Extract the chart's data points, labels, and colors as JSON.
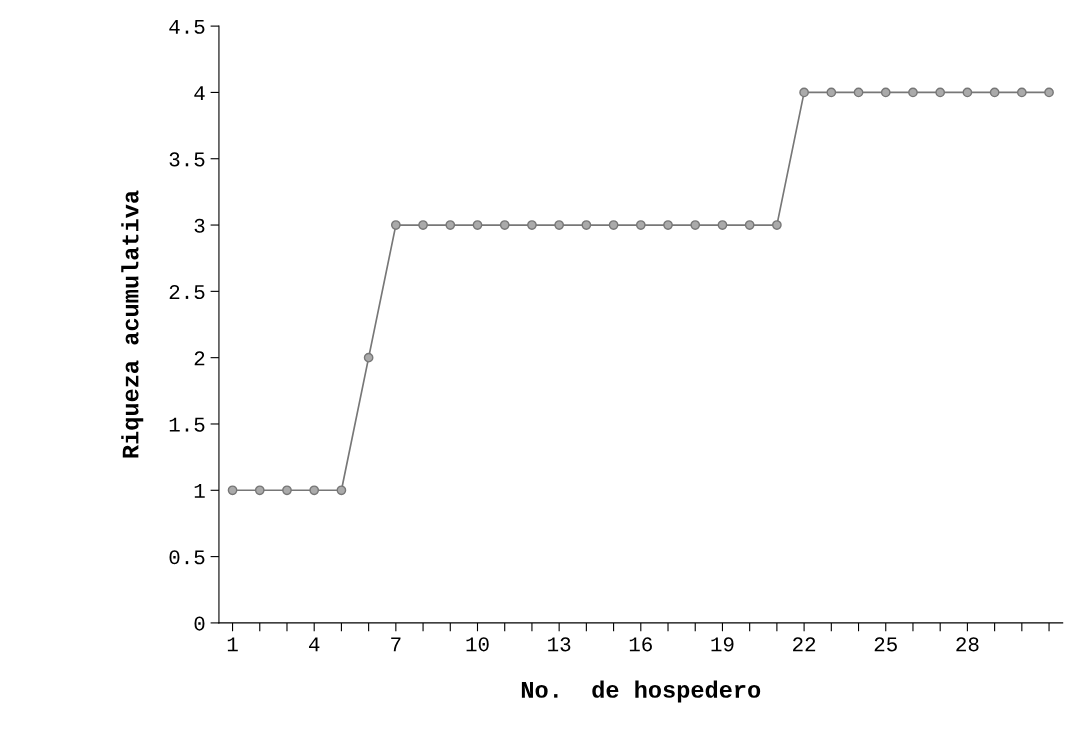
{
  "chart_data": {
    "type": "line",
    "xlabel": "No.  de hospedero",
    "ylabel": "Riqueza acumulativa",
    "categories": [
      "1",
      null,
      null,
      "4",
      null,
      null,
      "7",
      null,
      null,
      "10",
      null,
      null,
      "13",
      null,
      null,
      "16",
      null,
      null,
      "19",
      null,
      null,
      "22",
      null,
      null,
      "25",
      null,
      null,
      "28",
      null,
      null,
      null
    ],
    "series": [
      {
        "color": "#777777",
        "values": [
          1,
          1,
          1,
          1,
          1,
          2,
          3,
          3,
          3,
          3,
          3,
          3,
          3,
          3,
          3,
          3,
          3,
          3,
          3,
          3,
          3,
          4,
          4,
          4,
          4,
          4,
          4,
          4,
          4,
          4,
          4
        ]
      }
    ],
    "ylim": [
      0,
      4.5
    ],
    "yticks": [
      0,
      0.5,
      1,
      1.5,
      2,
      2.5,
      3,
      3.5,
      4,
      4.5
    ],
    "marker": "circle",
    "line_style": "solid",
    "grid": false,
    "legend": false
  }
}
